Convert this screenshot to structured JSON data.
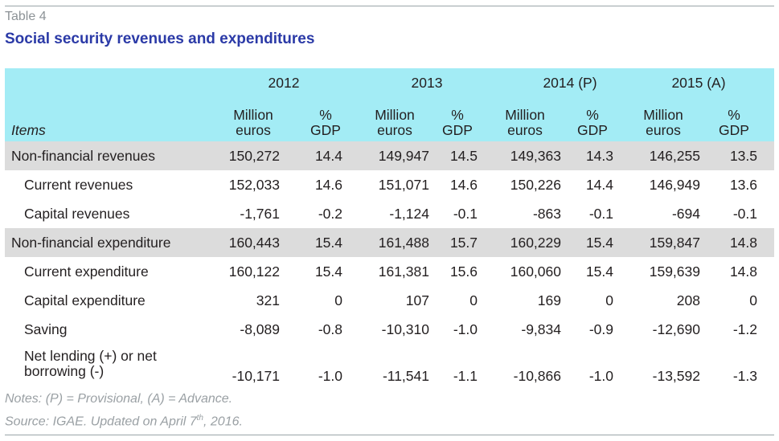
{
  "table_label": "Table 4",
  "title": "Social security revenues and expenditures",
  "columns": {
    "items_label": "Items",
    "years": [
      "2012",
      "2013",
      "2014 (P)",
      "2015 (A)"
    ],
    "unit_million": "Million euros",
    "unit_gdp": "% GDP"
  },
  "rows": [
    {
      "label": "Non-financial revenues",
      "values": [
        "150,272",
        "14.4",
        "149,947",
        "14.5",
        "149,363",
        "14.3",
        "146,255",
        "13.5"
      ]
    },
    {
      "label": "Current revenues",
      "values": [
        "152,033",
        "14.6",
        "151,071",
        "14.6",
        "150,226",
        "14.4",
        "146,949",
        "13.6"
      ]
    },
    {
      "label": "Capital revenues",
      "values": [
        "-1,761",
        "-0.2",
        "-1,124",
        "-0.1",
        "-863",
        "-0.1",
        "-694",
        "-0.1"
      ]
    },
    {
      "label": "Non-financial expenditure",
      "values": [
        "160,443",
        "15.4",
        "161,488",
        "15.7",
        "160,229",
        "15.4",
        "159,847",
        "14.8"
      ]
    },
    {
      "label": "Current expenditure",
      "values": [
        "160,122",
        "15.4",
        "161,381",
        "15.6",
        "160,060",
        "15.4",
        "159,639",
        "14.8"
      ]
    },
    {
      "label": "Capital expenditure",
      "values": [
        "321",
        "0",
        "107",
        "0",
        "169",
        "0",
        "208",
        "0"
      ]
    },
    {
      "label": "Saving",
      "values": [
        "-8,089",
        "-0.8",
        "-10,310",
        "-1.0",
        "-9,834",
        "-0.9",
        "-12,690",
        "-1.2"
      ]
    },
    {
      "label": "Net lending (+) or net borrowing (-)",
      "values": [
        "-10,171",
        "-1.0",
        "-11,541",
        "-1.1",
        "-10,866",
        "-1.0",
        "-13,592",
        "-1.3"
      ]
    }
  ],
  "notes": {
    "line1": "Notes: (P) = Provisional, (A) = Advance.",
    "source_prefix": "Source: IGAE. Updated on April 7",
    "source_sup": "th",
    "source_suffix": ", 2016."
  }
}
